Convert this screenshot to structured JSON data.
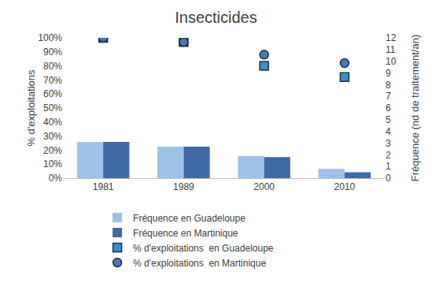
{
  "chart_data": {
    "type": "bar",
    "title": "Insecticides",
    "y_label": "% d'exploitations",
    "y2_label": "Fréquence (nd de traitement/an)",
    "categories": [
      "1981",
      "1989",
      "2000",
      "2010"
    ],
    "series": [
      {
        "name": "Fréquence en Guadeloupe",
        "type": "bar",
        "axis": "y2",
        "color": "#9dc3e6",
        "values": [
          3.1,
          2.7,
          1.9,
          0.8
        ]
      },
      {
        "name": "Fréquence en Martinique",
        "type": "bar",
        "axis": "y2",
        "color": "#3f6aa6",
        "values": [
          3.1,
          2.7,
          1.8,
          0.5
        ]
      },
      {
        "name": "% d'exploitations  en Guadeloupe",
        "type": "scatter",
        "marker": "square",
        "color": "#3d8fc6",
        "values": [
          100,
          97,
          80,
          72
        ]
      },
      {
        "name": "% d'exploitations  en Martinique",
        "type": "scatter",
        "marker": "circle",
        "color": "#4a78b4",
        "values": [
          100,
          97,
          88,
          82
        ]
      }
    ],
    "ylim": [
      0,
      100
    ],
    "yticks": [
      {
        "value": 0,
        "label": "0%"
      },
      {
        "value": 10,
        "label": "10%"
      },
      {
        "value": 20,
        "label": "20%"
      },
      {
        "value": 30,
        "label": "30%"
      },
      {
        "value": 40,
        "label": "40%"
      },
      {
        "value": 50,
        "label": "50%"
      },
      {
        "value": 60,
        "label": "60%"
      },
      {
        "value": 70,
        "label": "70%"
      },
      {
        "value": 80,
        "label": "80%"
      },
      {
        "value": 90,
        "label": "90%"
      },
      {
        "value": 100,
        "label": "100%"
      }
    ],
    "y2lim": [
      0,
      12
    ],
    "y2ticks": [
      0,
      1,
      2,
      3,
      4,
      5,
      6,
      7,
      8,
      9,
      10,
      11,
      12
    ],
    "grid": false,
    "legend": "bottom"
  }
}
